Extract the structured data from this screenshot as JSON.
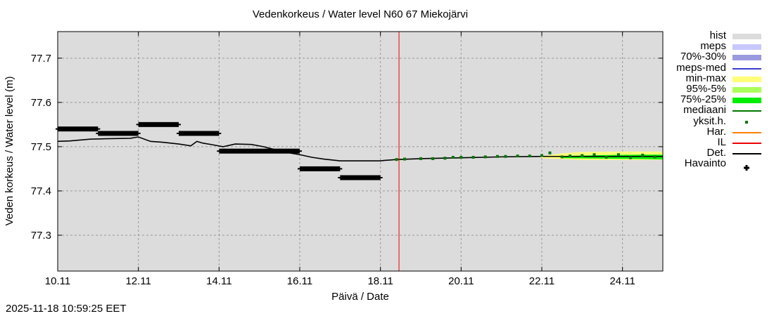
{
  "title": "Vedenkorkeus / Water level   N60 67 Miekojärvi",
  "timestamp": "2025-11-18 10:59:25 EET",
  "axes": {
    "xlabel": "Päivä / Date",
    "ylabel": "Veden korkeus / Water level (m)",
    "xticks": [
      "10.11",
      "12.11",
      "14.11",
      "16.11",
      "18.11",
      "20.11",
      "22.11",
      "24.11"
    ],
    "yticks": [
      "77.3",
      "77.4",
      "77.5",
      "77.6",
      "77.7"
    ]
  },
  "legend": [
    {
      "label": "hist",
      "kind": "band",
      "color": "#dcdcdc"
    },
    {
      "label": "meps",
      "kind": "band",
      "color": "#c8c8ff"
    },
    {
      "label": "70%-30%",
      "kind": "band",
      "color": "#9a9ade"
    },
    {
      "label": "meps-med",
      "kind": "line",
      "color": "#3c3cd0"
    },
    {
      "label": "min-max",
      "kind": "band",
      "color": "#ffff78"
    },
    {
      "label": "95%-5%",
      "kind": "band",
      "color": "#aaff5a"
    },
    {
      "label": "75%-25%",
      "kind": "band",
      "color": "#00ee00"
    },
    {
      "label": "mediaani",
      "kind": "line",
      "color": "#007800"
    },
    {
      "label": "yksit.h.",
      "kind": "dot",
      "color": "#007800"
    },
    {
      "label": "Har.",
      "kind": "line",
      "color": "#ff8000"
    },
    {
      "label": "IL",
      "kind": "line",
      "color": "#ee0000"
    },
    {
      "label": "Det.",
      "kind": "line",
      "color": "#000000"
    },
    {
      "label": "Havainto",
      "kind": "cross",
      "color": "#000000"
    }
  ],
  "chart_data": {
    "type": "line",
    "title": "Vedenkorkeus / Water level   N60 67 Miekojärvi",
    "xlabel": "Päivä / Date",
    "ylabel": "Veden korkeus / Water level (m)",
    "x_unit": "days since 10.11",
    "xlim": [
      0,
      15.0
    ],
    "ylim": [
      77.219,
      77.76
    ],
    "grid": true,
    "legend_position": "right",
    "now_marker": {
      "label": "IL",
      "x": 8.46,
      "date": "18.11 10:59",
      "color": "#ee0000"
    },
    "series": [
      {
        "name": "Havainto",
        "kind": "observation-segments",
        "segments": [
          {
            "x0": 0.0,
            "x1": 1.0,
            "y": 77.54
          },
          {
            "x0": 1.0,
            "x1": 2.0,
            "y": 77.53
          },
          {
            "x0": 2.0,
            "x1": 3.0,
            "y": 77.55
          },
          {
            "x0": 3.0,
            "x1": 4.0,
            "y": 77.53
          },
          {
            "x0": 4.0,
            "x1": 6.0,
            "y": 77.49
          },
          {
            "x0": 6.0,
            "x1": 7.0,
            "y": 77.45
          },
          {
            "x0": 7.0,
            "x1": 8.0,
            "y": 77.43
          }
        ]
      },
      {
        "name": "Det.",
        "kind": "line",
        "x": [
          0.0,
          0.3,
          0.8,
          1.2,
          1.8,
          2.0,
          2.3,
          2.6,
          3.0,
          3.3,
          3.45,
          3.6,
          3.8,
          4.1,
          4.4,
          4.8,
          5.1,
          5.4,
          5.8,
          6.0,
          6.3,
          6.6,
          7.0,
          7.3,
          7.6,
          8.0,
          8.1,
          8.4,
          9.0,
          10.0,
          11.0,
          12.0,
          13.0,
          14.0,
          15.0
        ],
        "y": [
          77.512,
          77.513,
          77.517,
          77.518,
          77.519,
          77.522,
          77.512,
          77.51,
          77.506,
          77.502,
          77.512,
          77.508,
          77.505,
          77.5,
          77.506,
          77.505,
          77.5,
          77.493,
          77.485,
          77.482,
          77.476,
          77.472,
          77.468,
          77.468,
          77.468,
          77.468,
          77.469,
          77.471,
          77.473,
          77.475,
          77.477,
          77.478,
          77.478,
          77.478,
          77.478
        ]
      },
      {
        "name": "min-max",
        "kind": "band",
        "x": [
          12.0,
          12.5,
          13.0,
          14.0,
          15.0
        ],
        "lower": [
          77.474,
          77.472,
          77.47,
          77.47,
          77.47
        ],
        "upper": [
          77.478,
          77.485,
          77.488,
          77.489,
          77.489
        ]
      },
      {
        "name": "75%-25%",
        "kind": "band",
        "x": [
          12.5,
          13.5,
          14.5,
          15.0
        ],
        "lower": [
          77.474,
          77.473,
          77.472,
          77.471
        ],
        "upper": [
          77.479,
          77.481,
          77.482,
          77.482
        ]
      },
      {
        "name": "yksit.h.",
        "kind": "scatter",
        "x": [
          8.4,
          8.6,
          9.0,
          9.3,
          9.6,
          9.8,
          10.0,
          10.3,
          10.6,
          10.9,
          11.1,
          11.4,
          11.7,
          12.0,
          12.2,
          12.5,
          12.7,
          13.0,
          13.3,
          13.6,
          13.9,
          14.2,
          14.5,
          14.8
        ],
        "y": [
          77.471,
          77.472,
          77.473,
          77.473,
          77.474,
          77.476,
          77.476,
          77.476,
          77.477,
          77.478,
          77.478,
          77.479,
          77.479,
          77.48,
          77.486,
          77.477,
          77.479,
          77.48,
          77.482,
          77.476,
          77.482,
          77.475,
          77.481,
          77.477
        ]
      }
    ]
  }
}
